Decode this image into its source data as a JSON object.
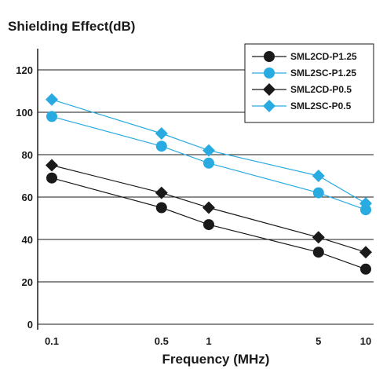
{
  "chart_data": {
    "type": "line",
    "title": "Shielding Effect(dB)",
    "xlabel": "Frequency (MHz)",
    "ylabel": "",
    "x_scale": "log",
    "x": [
      0.1,
      0.5,
      1,
      5,
      10
    ],
    "x_tick_labels": [
      "0.1",
      "0.5",
      "1",
      "5",
      "10"
    ],
    "ylim": [
      0,
      130
    ],
    "y_ticks": [
      0,
      20,
      40,
      60,
      80,
      100,
      120
    ],
    "grid": "horizontal",
    "legend_position": "top-right",
    "series": [
      {
        "name": "SML2CD-P1.25",
        "marker": "circle",
        "color": "#1a1a1a",
        "values": [
          69,
          55,
          47,
          34,
          26
        ]
      },
      {
        "name": "SML2SC-P1.25",
        "marker": "circle",
        "color": "#29abe2",
        "values": [
          98,
          84,
          76,
          62,
          54
        ]
      },
      {
        "name": "SML2CD-P0.5",
        "marker": "diamond",
        "color": "#1a1a1a",
        "values": [
          75,
          62,
          55,
          41,
          34
        ]
      },
      {
        "name": "SML2SC-P0.5",
        "marker": "diamond",
        "color": "#29abe2",
        "values": [
          106,
          90,
          82,
          70,
          57
        ]
      }
    ]
  }
}
